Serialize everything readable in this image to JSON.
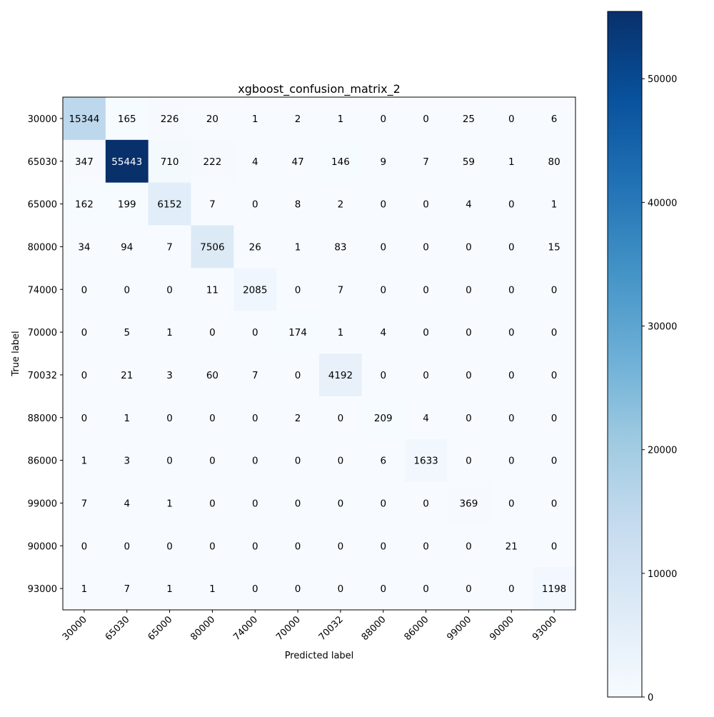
{
  "chart_data": {
    "type": "heatmap",
    "title": "xgboost_confusion_matrix_2",
    "xlabel": "Predicted label",
    "ylabel": "True label",
    "labels": [
      "30000",
      "65030",
      "65000",
      "80000",
      "74000",
      "70000",
      "70032",
      "88000",
      "86000",
      "99000",
      "90000",
      "93000"
    ],
    "matrix": [
      [
        15344,
        165,
        226,
        20,
        1,
        2,
        1,
        0,
        0,
        25,
        0,
        6
      ],
      [
        347,
        55443,
        710,
        222,
        4,
        47,
        146,
        9,
        7,
        59,
        1,
        80
      ],
      [
        162,
        199,
        6152,
        7,
        0,
        8,
        2,
        0,
        0,
        4,
        0,
        1
      ],
      [
        34,
        94,
        7,
        7506,
        26,
        1,
        83,
        0,
        0,
        0,
        0,
        15
      ],
      [
        0,
        0,
        0,
        11,
        2085,
        0,
        7,
        0,
        0,
        0,
        0,
        0
      ],
      [
        0,
        5,
        1,
        0,
        0,
        174,
        1,
        4,
        0,
        0,
        0,
        0
      ],
      [
        0,
        21,
        3,
        60,
        7,
        0,
        4192,
        0,
        0,
        0,
        0,
        0
      ],
      [
        0,
        1,
        0,
        0,
        0,
        2,
        0,
        209,
        4,
        0,
        0,
        0
      ],
      [
        1,
        3,
        0,
        0,
        0,
        0,
        0,
        6,
        1633,
        0,
        0,
        0
      ],
      [
        7,
        4,
        1,
        0,
        0,
        0,
        0,
        0,
        0,
        369,
        0,
        0
      ],
      [
        0,
        0,
        0,
        0,
        0,
        0,
        0,
        0,
        0,
        0,
        21,
        0
      ],
      [
        1,
        7,
        1,
        1,
        0,
        0,
        0,
        0,
        0,
        0,
        0,
        1198
      ]
    ],
    "colormap": "Blues",
    "colorbar": {
      "range": [
        0,
        55443
      ],
      "ticks": [
        0,
        10000,
        20000,
        30000,
        40000,
        50000
      ],
      "tick_labels": [
        "0",
        "10000",
        "20000",
        "30000",
        "40000",
        "50000"
      ]
    },
    "grid": false,
    "colors": {
      "low": "#f7fbff",
      "high": "#08306b",
      "dark_text": "#000000",
      "light_text": "#ffffff"
    }
  }
}
